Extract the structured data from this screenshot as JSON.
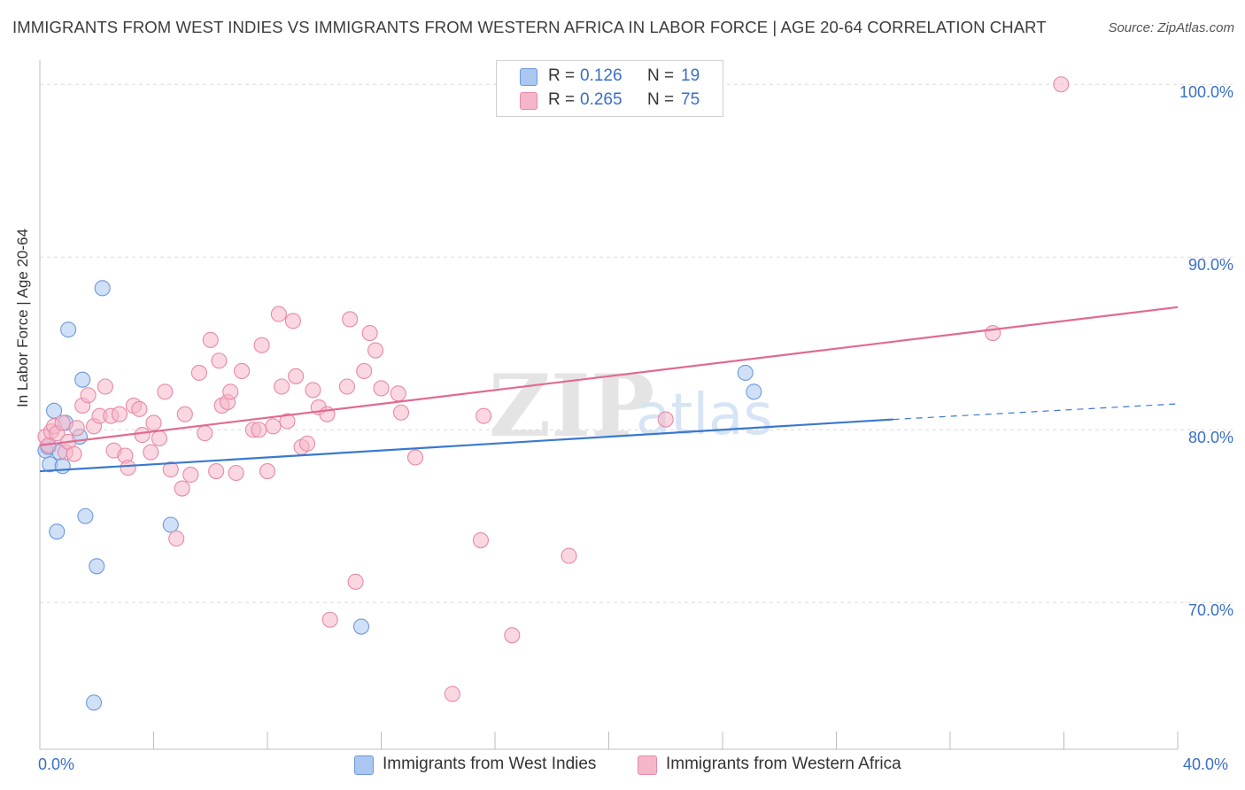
{
  "title": "IMMIGRANTS FROM WEST INDIES VS IMMIGRANTS FROM WESTERN AFRICA IN LABOR FORCE | AGE 20-64 CORRELATION CHART",
  "source": "Source: ZipAtlas.com",
  "watermark": {
    "zip": "ZIP",
    "atlas": "atlas"
  },
  "legend": {
    "r_label": "R =",
    "n_label": "N =",
    "rows": [
      {
        "r": "0.126",
        "n": "19",
        "color": "#a9c7f1"
      },
      {
        "r": "0.265",
        "n": "75",
        "color": "#f6b6c9"
      }
    ]
  },
  "chart_data": {
    "type": "scatter",
    "ylabel": "In Labor Force | Age 20-64",
    "xlim": [
      0,
      40
    ],
    "ylim": [
      61.5,
      101.5
    ],
    "x_tick_labels": [
      "0.0%",
      "40.0%"
    ],
    "y_ticks": [
      {
        "value": 100,
        "label": "100.0%"
      },
      {
        "value": 90,
        "label": "90.0%"
      },
      {
        "value": 80,
        "label": "80.0%"
      },
      {
        "value": 70,
        "label": "70.0%"
      }
    ],
    "grid": true,
    "series": [
      {
        "name": "Immigrants from West Indies",
        "color": "#a9c7f1",
        "stroke": "#6d99dc",
        "trend_color": "#3a78d0",
        "trend": {
          "x0": 0,
          "y0": 77.6,
          "x1": 30,
          "y1": 80.6,
          "dash_to_x": 40,
          "dash_to_y": 81.5
        },
        "points": [
          [
            0.2,
            78.8
          ],
          [
            0.3,
            79.0
          ],
          [
            0.35,
            78.0
          ],
          [
            0.5,
            81.1
          ],
          [
            0.6,
            74.1
          ],
          [
            0.7,
            78.7
          ],
          [
            0.8,
            77.9
          ],
          [
            0.9,
            80.4
          ],
          [
            1.0,
            85.8
          ],
          [
            1.4,
            79.6
          ],
          [
            1.5,
            82.9
          ],
          [
            1.6,
            75.0
          ],
          [
            1.9,
            64.2
          ],
          [
            2.0,
            72.1
          ],
          [
            2.2,
            88.2
          ],
          [
            4.6,
            74.5
          ],
          [
            11.3,
            68.6
          ],
          [
            24.8,
            83.3
          ],
          [
            25.1,
            82.2
          ]
        ]
      },
      {
        "name": "Immigrants from Western Africa",
        "color": "#f6b6c9",
        "stroke": "#e68aa5",
        "trend_color": "#e06a92",
        "trend": {
          "x0": 0,
          "y0": 79.1,
          "x1": 40,
          "y1": 87.1
        },
        "points": [
          [
            0.2,
            79.6
          ],
          [
            0.3,
            79.1
          ],
          [
            0.4,
            79.9
          ],
          [
            0.5,
            80.2
          ],
          [
            0.6,
            79.8
          ],
          [
            0.8,
            80.4
          ],
          [
            0.9,
            78.7
          ],
          [
            1.0,
            79.3
          ],
          [
            1.2,
            78.6
          ],
          [
            1.3,
            80.1
          ],
          [
            1.5,
            81.4
          ],
          [
            1.7,
            82.0
          ],
          [
            1.9,
            80.2
          ],
          [
            2.1,
            80.8
          ],
          [
            2.3,
            82.5
          ],
          [
            2.5,
            80.8
          ],
          [
            2.6,
            78.8
          ],
          [
            2.8,
            80.9
          ],
          [
            3.0,
            78.5
          ],
          [
            3.1,
            77.8
          ],
          [
            3.3,
            81.4
          ],
          [
            3.5,
            81.2
          ],
          [
            3.6,
            79.7
          ],
          [
            3.9,
            78.7
          ],
          [
            4.0,
            80.4
          ],
          [
            4.2,
            79.5
          ],
          [
            4.4,
            82.2
          ],
          [
            4.6,
            77.7
          ],
          [
            4.8,
            73.7
          ],
          [
            5.0,
            76.6
          ],
          [
            5.1,
            80.9
          ],
          [
            5.3,
            77.4
          ],
          [
            5.6,
            83.3
          ],
          [
            5.8,
            79.8
          ],
          [
            6.0,
            85.2
          ],
          [
            6.2,
            77.6
          ],
          [
            6.3,
            84.0
          ],
          [
            6.4,
            81.4
          ],
          [
            6.6,
            81.6
          ],
          [
            6.7,
            82.2
          ],
          [
            6.9,
            77.5
          ],
          [
            7.1,
            83.4
          ],
          [
            7.5,
            80.0
          ],
          [
            7.7,
            80.0
          ],
          [
            7.8,
            84.9
          ],
          [
            8.0,
            77.6
          ],
          [
            8.2,
            80.2
          ],
          [
            8.4,
            86.7
          ],
          [
            8.5,
            82.5
          ],
          [
            8.7,
            80.5
          ],
          [
            8.9,
            86.3
          ],
          [
            9.0,
            83.1
          ],
          [
            9.2,
            79.0
          ],
          [
            9.4,
            79.2
          ],
          [
            9.6,
            82.3
          ],
          [
            9.8,
            81.3
          ],
          [
            10.1,
            80.9
          ],
          [
            10.8,
            82.5
          ],
          [
            10.9,
            86.4
          ],
          [
            11.1,
            71.2
          ],
          [
            11.4,
            83.4
          ],
          [
            11.6,
            85.6
          ],
          [
            11.8,
            84.6
          ],
          [
            12.0,
            82.4
          ],
          [
            12.6,
            82.1
          ],
          [
            12.7,
            81.0
          ],
          [
            13.2,
            78.4
          ],
          [
            10.2,
            69.0
          ],
          [
            14.5,
            64.7
          ],
          [
            15.6,
            80.8
          ],
          [
            15.5,
            73.6
          ],
          [
            16.6,
            68.1
          ],
          [
            18.6,
            72.7
          ],
          [
            22.0,
            80.6
          ],
          [
            33.5,
            85.6
          ],
          [
            35.9,
            100.0
          ]
        ]
      }
    ]
  }
}
